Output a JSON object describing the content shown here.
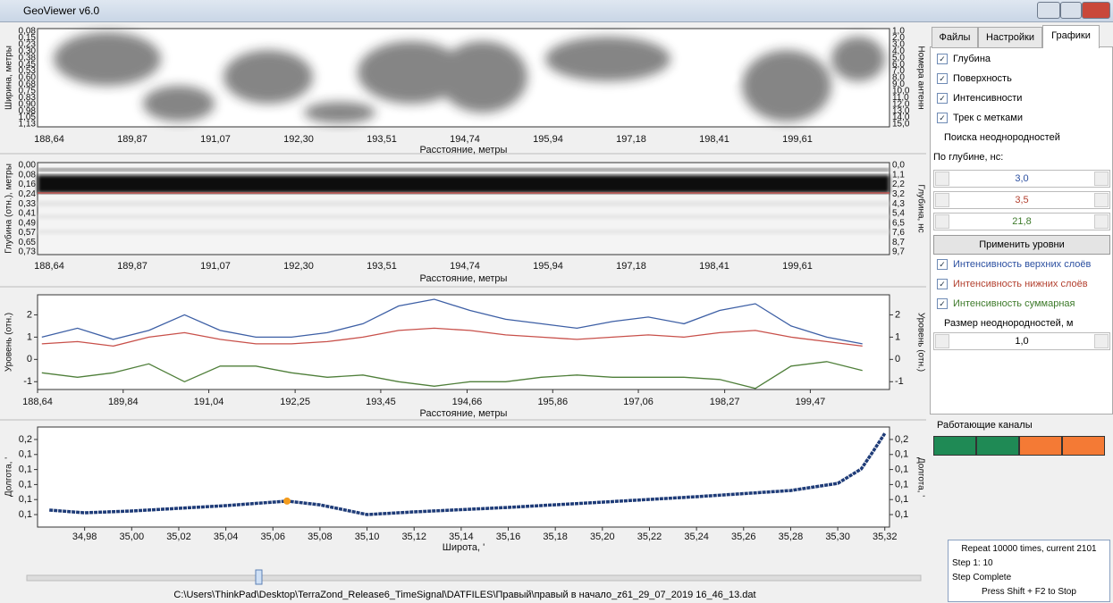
{
  "window": {
    "title": "GeoViewer v6.0"
  },
  "plots": [
    {
      "y_label": "Ширина, метры",
      "y_ticks": [
        "0,08",
        "0,15",
        "0,23",
        "0,30",
        "0,38",
        "0,45",
        "0,53",
        "0,60",
        "0,68",
        "0,75",
        "0,83",
        "0,90",
        "0,98",
        "1,05",
        "1,13"
      ],
      "y2_label": "Номера антенн",
      "y2_ticks": [
        "1,0",
        "2,0",
        "3,0",
        "4,0",
        "5,0",
        "6,0",
        "7,0",
        "8,0",
        "9,0",
        "10,0",
        "11,0",
        "12,0",
        "13,0",
        "14,0",
        "15,0"
      ],
      "x_ticks": [
        "188,64",
        "189,87",
        "191,07",
        "192,30",
        "193,51",
        "194,74",
        "195,94",
        "197,18",
        "198,41",
        "199,61"
      ],
      "x_label": "Расстояние, метры"
    },
    {
      "y_label": "Глубина (отн.), метры",
      "y_ticks": [
        "0,00",
        "0,08",
        "0,16",
        "0,24",
        "0,33",
        "0,41",
        "0,49",
        "0,57",
        "0,65",
        "0,73"
      ],
      "y2_label": "Глубина, нс",
      "y2_ticks": [
        "0,0",
        "1,1",
        "2,2",
        "3,2",
        "4,3",
        "5,4",
        "6,5",
        "7,6",
        "8,7",
        "9,7"
      ],
      "x_ticks": [
        "188,64",
        "189,87",
        "191,07",
        "192,30",
        "193,51",
        "194,74",
        "195,94",
        "197,18",
        "198,41",
        "199,61"
      ],
      "x_label": "Расстояние, метры"
    },
    {
      "type": "line",
      "y_label": "Уровень (отн.)",
      "y2_label": "Уровень (отн.)",
      "x_label": "Расстояние, метры",
      "xlim": [
        188.64,
        200.58
      ],
      "xticks": [
        {
          "value": 188.64,
          "label": "188,64"
        },
        {
          "value": 189.84,
          "label": "189,84"
        },
        {
          "value": 191.04,
          "label": "191,04"
        },
        {
          "value": 192.25,
          "label": "192,25"
        },
        {
          "value": 193.45,
          "label": "193,45"
        },
        {
          "value": 194.66,
          "label": "194,66"
        },
        {
          "value": 195.86,
          "label": "195,86"
        },
        {
          "value": 197.06,
          "label": "197,06"
        },
        {
          "value": 198.27,
          "label": "198,27"
        },
        {
          "value": 199.47,
          "label": "199,47"
        }
      ],
      "ylim": [
        -1.35,
        2.9
      ],
      "yticks": [
        2,
        1,
        0,
        -1
      ],
      "x": [
        188.7,
        189.2,
        189.7,
        190.2,
        190.7,
        191.2,
        191.7,
        192.2,
        192.7,
        193.2,
        193.7,
        194.2,
        194.7,
        195.2,
        195.7,
        196.2,
        196.7,
        197.2,
        197.7,
        198.2,
        198.7,
        199.2,
        199.7,
        200.2
      ],
      "series": [
        {
          "color": "#3d5fa5",
          "values": [
            1.0,
            1.4,
            0.9,
            1.3,
            2.0,
            1.3,
            1.0,
            1.0,
            1.2,
            1.6,
            2.4,
            2.7,
            2.2,
            1.8,
            1.6,
            1.4,
            1.7,
            1.9,
            1.6,
            2.2,
            2.5,
            1.5,
            1.0,
            0.7
          ]
        },
        {
          "color": "#c8504a",
          "values": [
            0.7,
            0.8,
            0.6,
            1.0,
            1.2,
            0.9,
            0.7,
            0.7,
            0.8,
            1.0,
            1.3,
            1.4,
            1.3,
            1.1,
            1.0,
            0.9,
            1.0,
            1.1,
            1.0,
            1.2,
            1.3,
            1.0,
            0.8,
            0.6
          ]
        },
        {
          "color": "#4f7f3a",
          "values": [
            -0.6,
            -0.8,
            -0.6,
            -0.2,
            -1.0,
            -0.3,
            -0.3,
            -0.6,
            -0.8,
            -0.7,
            -1.0,
            -1.2,
            -1.0,
            -1.0,
            -0.8,
            -0.7,
            -0.8,
            -0.8,
            -0.8,
            -0.9,
            -1.3,
            -0.3,
            -0.1,
            -0.5
          ]
        }
      ]
    },
    {
      "type": "scatter",
      "y_label": "Долгота, '",
      "y2_label": "Долгота, '",
      "x_label": "Широта, '",
      "xlim": [
        34.96,
        35.322
      ],
      "xticks": [
        {
          "value": 34.98,
          "label": "34,98"
        },
        {
          "value": 35.0,
          "label": "35,00"
        },
        {
          "value": 35.02,
          "label": "35,02"
        },
        {
          "value": 35.04,
          "label": "35,04"
        },
        {
          "value": 35.06,
          "label": "35,06"
        },
        {
          "value": 35.08,
          "label": "35,08"
        },
        {
          "value": 35.1,
          "label": "35,10"
        },
        {
          "value": 35.12,
          "label": "35,12"
        },
        {
          "value": 35.14,
          "label": "35,14"
        },
        {
          "value": 35.16,
          "label": "35,16"
        },
        {
          "value": 35.18,
          "label": "35,18"
        },
        {
          "value": 35.2,
          "label": "35,20"
        },
        {
          "value": 35.22,
          "label": "35,22"
        },
        {
          "value": 35.24,
          "label": "35,24"
        },
        {
          "value": 35.26,
          "label": "35,26"
        },
        {
          "value": 35.28,
          "label": "35,28"
        },
        {
          "value": 35.3,
          "label": "35,30"
        },
        {
          "value": 35.32,
          "label": "35,32"
        }
      ],
      "ylim": [
        0.0917,
        0.1583
      ],
      "yticks": [
        {
          "value": 0.15,
          "label": "0,2"
        },
        {
          "value": 0.14,
          "label": "0,1"
        },
        {
          "value": 0.13,
          "label": "0,1"
        },
        {
          "value": 0.12,
          "label": "0,1"
        },
        {
          "value": 0.11,
          "label": "0,1"
        },
        {
          "value": 0.1,
          "label": "0,1"
        }
      ],
      "color": "#1f3c78",
      "x": [
        34.965,
        34.98,
        35.0,
        35.04,
        35.066,
        35.08,
        35.1,
        35.12,
        35.16,
        35.2,
        35.24,
        35.28,
        35.3,
        35.31,
        35.315,
        35.32
      ],
      "values": [
        0.103,
        0.1012,
        0.1024,
        0.106,
        0.109,
        0.1065,
        0.1,
        0.1018,
        0.1048,
        0.1083,
        0.1119,
        0.116,
        0.1208,
        0.1304,
        0.142,
        0.154
      ],
      "marker": {
        "x": 35.066,
        "y": 0.109,
        "color": "#f39c1e"
      }
    }
  ],
  "panel": {
    "tabs": [
      "Файлы",
      "Настройки",
      "Графики"
    ],
    "checks": [
      "Глубина",
      "Поверхность",
      "Интенсивности",
      "Трек с метками"
    ],
    "search_group": "Поиска неоднородностей",
    "depth_label": "По глубине, нс:",
    "levels": [
      {
        "text": "3,0",
        "color": "#2b4fa0"
      },
      {
        "text": "3,5",
        "color": "#b3402f"
      },
      {
        "text": "21,8",
        "color": "#3d7a2a"
      }
    ],
    "apply_button": "Применить уровни",
    "intensity_checks": [
      {
        "text": "Интенсивность верхних слоёв",
        "color": "#2b4fa0"
      },
      {
        "text": "Интенсивность нижних слоёв",
        "color": "#b3402f"
      },
      {
        "text": "Интенсивность суммарная",
        "color": "#3d7a2a"
      }
    ],
    "size_label": "Размер неоднородностей, м",
    "size_value": "1,0",
    "channels_label": "Работающие каналы",
    "channels": [
      {
        "color": "#1f8a55"
      },
      {
        "color": "#1f8a55"
      },
      {
        "color": "#f47a35"
      },
      {
        "color": "#f47a35"
      }
    ]
  },
  "log": [
    "Repeat 10000 times, current 2101",
    "Step 1: 10",
    "Step Complete",
    "Press Shift + F2 to Stop"
  ],
  "status_path": "C:\\Users\\ThinkPad\\Desktop\\TerraZond_Release6_TimeSignal\\DATFILES\\Правый\\правый в начало_z61_29_07_2019 16_46_13.dat"
}
